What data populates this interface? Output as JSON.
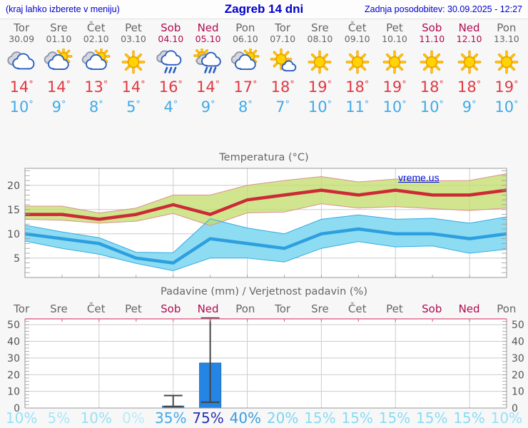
{
  "header": {
    "hint": "(kraj lahko izberete v meniju)",
    "title": "Zagreb 14 dni",
    "updated": "Zadnja posodobitev: 30.09.2025 - 12:27"
  },
  "degree": "°",
  "watermark": "vreme.us",
  "colors": {
    "accent_blue": "#0000cc",
    "weekend": "#b00a50",
    "weekday": "#666666",
    "max_temp": "#e03943",
    "min_temp": "#41aae8",
    "frame": "#999999",
    "grid": "#cccccc",
    "axis_label": "#555555",
    "top_axis_pink": "#e26a8e"
  },
  "days": [
    {
      "name": "Tor",
      "date": "30.09",
      "weekend": false,
      "icon": "cloudy-icon",
      "max": "14",
      "min": "10"
    },
    {
      "name": "Sre",
      "date": "01.10",
      "weekend": false,
      "icon": "partly-cloudy-icon",
      "max": "14",
      "min": "9"
    },
    {
      "name": "Čet",
      "date": "02.10",
      "weekend": false,
      "icon": "partly-cloudy-icon",
      "max": "13",
      "min": "8"
    },
    {
      "name": "Pet",
      "date": "03.10",
      "weekend": false,
      "icon": "sunny-icon",
      "max": "14",
      "min": "5"
    },
    {
      "name": "Sob",
      "date": "04.10",
      "weekend": true,
      "icon": "rain-icon",
      "max": "16",
      "min": "4"
    },
    {
      "name": "Ned",
      "date": "05.10",
      "weekend": true,
      "icon": "sun-rain-icon",
      "max": "14",
      "min": "9"
    },
    {
      "name": "Pon",
      "date": "06.10",
      "weekend": false,
      "icon": "partly-cloudy-icon",
      "max": "17",
      "min": "8"
    },
    {
      "name": "Tor",
      "date": "07.10",
      "weekend": false,
      "icon": "mostly-sunny-icon",
      "max": "18",
      "min": "7"
    },
    {
      "name": "Sre",
      "date": "08.10",
      "weekend": false,
      "icon": "sunny-icon",
      "max": "19",
      "min": "10"
    },
    {
      "name": "Čet",
      "date": "09.10",
      "weekend": false,
      "icon": "sunny-icon",
      "max": "18",
      "min": "11"
    },
    {
      "name": "Pet",
      "date": "10.10",
      "weekend": false,
      "icon": "sunny-icon",
      "max": "19",
      "min": "10"
    },
    {
      "name": "Sob",
      "date": "11.10",
      "weekend": true,
      "icon": "sunny-icon",
      "max": "18",
      "min": "10"
    },
    {
      "name": "Ned",
      "date": "12.10",
      "weekend": true,
      "icon": "sunny-icon",
      "max": "18",
      "min": "9"
    },
    {
      "name": "Pon",
      "date": "13.10",
      "weekend": false,
      "icon": "sunny-icon",
      "max": "19",
      "min": "10"
    }
  ],
  "chart_data": [
    {
      "type": "area",
      "title": "Temperatura (°C)",
      "categories": [
        "Tor",
        "Sre",
        "Čet",
        "Pet",
        "Sob",
        "Ned",
        "Pon",
        "Tor",
        "Sre",
        "Čet",
        "Pet",
        "Sob",
        "Ned",
        "Pon"
      ],
      "ylim": [
        1,
        23.5
      ],
      "yticks": [
        5,
        10,
        15,
        20
      ],
      "vgrid_day_indices": [
        2,
        4,
        6,
        8,
        10,
        12
      ],
      "grid": true,
      "legend_position": "none",
      "series": [
        {
          "name": "Maksimalna temperatura",
          "color": "#cc2a36",
          "band_fill": "#c3de6e",
          "band_edge": "#e09090",
          "values": [
            14,
            14,
            13,
            14,
            16,
            14,
            17,
            18,
            19,
            18,
            19,
            18,
            18,
            19
          ],
          "upper": [
            15.7,
            15.7,
            14.3,
            15.3,
            18.0,
            18.0,
            20.0,
            21.0,
            21.8,
            20.7,
            21.3,
            20.9,
            21.0,
            22.4
          ],
          "lower": [
            13.0,
            12.8,
            12.2,
            12.6,
            14.2,
            11.7,
            14.3,
            14.5,
            16.2,
            15.3,
            15.6,
            15.2,
            14.8,
            15.3
          ]
        },
        {
          "name": "Minimalna temperatura",
          "color": "#2d9fdf",
          "band_fill": "#8edcf2",
          "band_edge": "#35aae4",
          "values": [
            10,
            9,
            8,
            5,
            4,
            9,
            8,
            7,
            10,
            11,
            10,
            10,
            9,
            10
          ],
          "upper": [
            11.8,
            10.4,
            9.2,
            6.2,
            6.1,
            13.1,
            11.2,
            10.0,
            13.0,
            13.9,
            13.0,
            13.2,
            12.2,
            13.5
          ],
          "lower": [
            8.5,
            7.0,
            5.8,
            3.9,
            2.4,
            5.0,
            5.0,
            4.2,
            7.0,
            8.4,
            7.3,
            7.5,
            6.0,
            6.8
          ]
        }
      ]
    },
    {
      "type": "bar",
      "title": "Padavine (mm) / Verjetnost padavin (%)",
      "categories": [
        "Tor",
        "Sre",
        "Čet",
        "Pet",
        "Sob",
        "Ned",
        "Pon",
        "Tor",
        "Sre",
        "Čet",
        "Pet",
        "Sob",
        "Ned",
        "Pon"
      ],
      "ylim": [
        0,
        53.5
      ],
      "yticks": [
        0,
        10,
        20,
        30,
        40,
        50
      ],
      "vgrid_day_indices": [
        2,
        4,
        6,
        8,
        10,
        12
      ],
      "grid": true,
      "bar_color": "#2585e4",
      "bar_edge": "#1a6ac0",
      "whisker_color": "#444444",
      "values": [
        0,
        0,
        0,
        0,
        1.2,
        27,
        0,
        0,
        0,
        0,
        0,
        0,
        0,
        0
      ],
      "whiskers": [
        null,
        null,
        null,
        null,
        {
          "low": 0.9,
          "high": 7.5
        },
        {
          "low": 3.5,
          "high": 54
        },
        null,
        null,
        null,
        null,
        null,
        null,
        null,
        null
      ],
      "probabilities": [
        {
          "label": "10%",
          "color": "#97e1f8"
        },
        {
          "label": "5%",
          "color": "#a9e6f9"
        },
        {
          "label": "10%",
          "color": "#97e1f8"
        },
        {
          "label": "0%",
          "color": "#b9ebfa"
        },
        {
          "label": "35%",
          "color": "#41a9ea"
        },
        {
          "label": "75%",
          "color": "#2b2fb3"
        },
        {
          "label": "40%",
          "color": "#3a9ce0"
        },
        {
          "label": "20%",
          "color": "#79d5f3"
        },
        {
          "label": "15%",
          "color": "#89dcf6"
        },
        {
          "label": "15%",
          "color": "#89dcf6"
        },
        {
          "label": "15%",
          "color": "#89dcf6"
        },
        {
          "label": "15%",
          "color": "#89dcf6"
        },
        {
          "label": "15%",
          "color": "#89dcf6"
        },
        {
          "label": "10%",
          "color": "#97e1f8"
        }
      ]
    }
  ]
}
